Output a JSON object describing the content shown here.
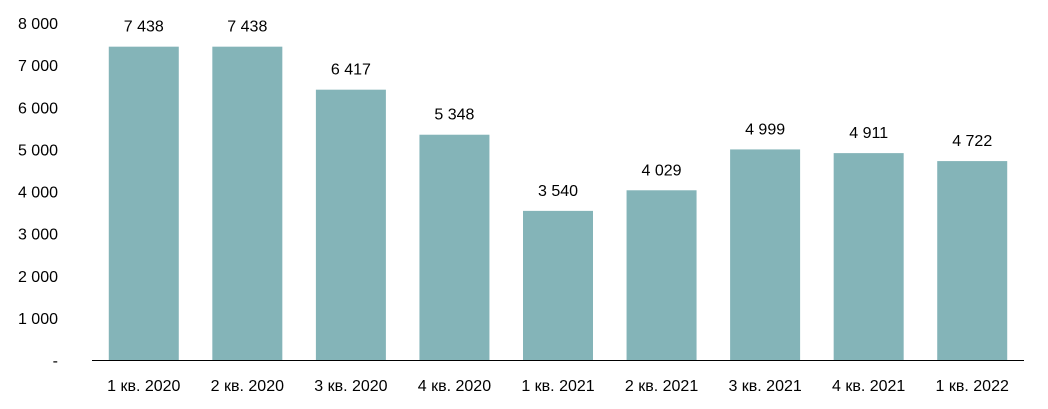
{
  "chart_data": {
    "type": "bar",
    "title": "",
    "xlabel": "",
    "ylabel": "",
    "categories": [
      "1 кв. 2020",
      "2 кв. 2020",
      "3 кв. 2020",
      "4 кв. 2020",
      "1 кв. 2021",
      "2 кв. 2021",
      "3 кв. 2021",
      "4 кв. 2021",
      "1 кв. 2022"
    ],
    "values": [
      7438,
      7438,
      6417,
      5348,
      3540,
      4029,
      4999,
      4911,
      4722
    ],
    "value_labels": [
      "7 438",
      "7 438",
      "6 417",
      "5 348",
      "3 540",
      "4 029",
      "4 999",
      "4 911",
      "4 722"
    ],
    "ylim": [
      0,
      8000
    ],
    "yticks": [
      0,
      1000,
      2000,
      3000,
      4000,
      5000,
      6000,
      7000,
      8000
    ],
    "ytick_labels": [
      "-",
      "1 000",
      "2 000",
      "3 000",
      "4 000",
      "5 000",
      "6 000",
      "7 000",
      "8 000"
    ],
    "grid": false,
    "legend": "none",
    "bar_color": "#84b4b8",
    "axis_color": "#000000"
  }
}
